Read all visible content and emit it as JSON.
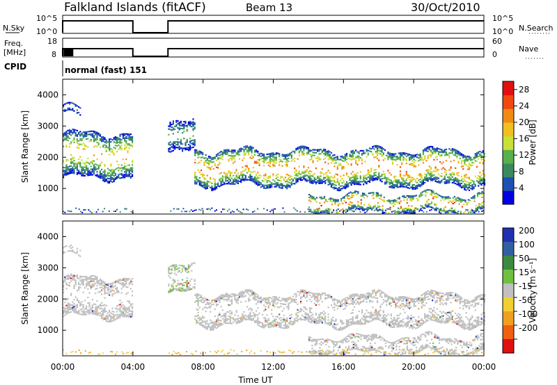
{
  "header": {
    "station": "Falkland Islands (fitACF)",
    "beam": "Beam 13",
    "date": "30/Oct/2010"
  },
  "sky_panel": {
    "left_label": "N.Sky",
    "right_label": "N.Search",
    "left_ticks": [
      "10^5",
      "10^0"
    ],
    "right_ticks": [
      "10^5",
      "10^0"
    ]
  },
  "freq_panel": {
    "left_label_1": "Freq.",
    "left_label_2": "[MHz]",
    "right_label": "Nave",
    "left_ticks": [
      "18",
      "8"
    ],
    "right_ticks": [
      "60",
      "0"
    ]
  },
  "cpid_panel": {
    "label": "CPID",
    "program": "normal (fast) 151"
  },
  "colors": {
    "power": [
      "#0000e0",
      "#1f4fb0",
      "#3a8a60",
      "#5ab04a",
      "#c8e03a",
      "#f0c020",
      "#f08a10",
      "#f04a10",
      "#e01010"
    ],
    "velocity": [
      "#2030b0",
      "#3060a0",
      "#3a8a40",
      "#70c040",
      "#c0c0c0",
      "#f0d030",
      "#f0a020",
      "#f06010",
      "#e01010"
    ],
    "ground_scatter": "#c0c0c0"
  },
  "chart_data": [
    {
      "type": "heatmap",
      "title": "Power",
      "ylabel": "Slant Range [km]",
      "y_ticks": [
        "1000",
        "2000",
        "3000",
        "4000"
      ],
      "ylim": [
        180,
        4500
      ],
      "x_ticks": [
        "00:00",
        "04:00",
        "08:00",
        "12:00",
        "16:00",
        "20:00",
        "00:00"
      ],
      "xlim_hours": [
        0,
        24
      ],
      "colorbar": {
        "label": "Power [dB]",
        "ticks": [
          "4",
          "8",
          "12",
          "16",
          "20",
          "24",
          "28"
        ],
        "range": [
          0,
          30
        ]
      },
      "data_gap_hours": [
        4.0,
        6.0
      ],
      "scatter_regions": [
        {
          "t0": 0.0,
          "t1": 4.0,
          "r_center": 2050,
          "r_halfwidth": 450,
          "peak_db": 22
        },
        {
          "t0": 0.0,
          "t1": 1.0,
          "r_center": 3450,
          "r_halfwidth": 80,
          "peak_db": 12
        },
        {
          "t0": 6.0,
          "t1": 7.5,
          "r_center": 2600,
          "r_halfwidth": 300,
          "peak_db": 12
        },
        {
          "t0": 7.5,
          "t1": 24.0,
          "r_center": 1650,
          "r_halfwidth": 350,
          "peak_db": 27
        },
        {
          "t0": 14.0,
          "t1": 24.0,
          "r_center": 500,
          "r_halfwidth": 180,
          "peak_db": 28
        }
      ]
    },
    {
      "type": "heatmap",
      "title": "Velocity",
      "ylabel": "Slant Range [km]",
      "y_ticks": [
        "1000",
        "2000",
        "3000",
        "4000"
      ],
      "ylim": [
        180,
        4500
      ],
      "x_ticks": [
        "00:00",
        "04:00",
        "08:00",
        "12:00",
        "16:00",
        "20:00",
        "00:00"
      ],
      "xlabel": "Time UT",
      "xlim_hours": [
        0,
        24
      ],
      "colorbar": {
        "label": "Velocity [m s⁻¹]",
        "ticks": [
          "200",
          "100",
          "50",
          "15",
          "-15",
          "-50",
          "-100",
          "-200"
        ],
        "range": [
          -250,
          250
        ]
      },
      "dominant": "ground scatter (grey, |v| < 15 m/s)"
    }
  ]
}
